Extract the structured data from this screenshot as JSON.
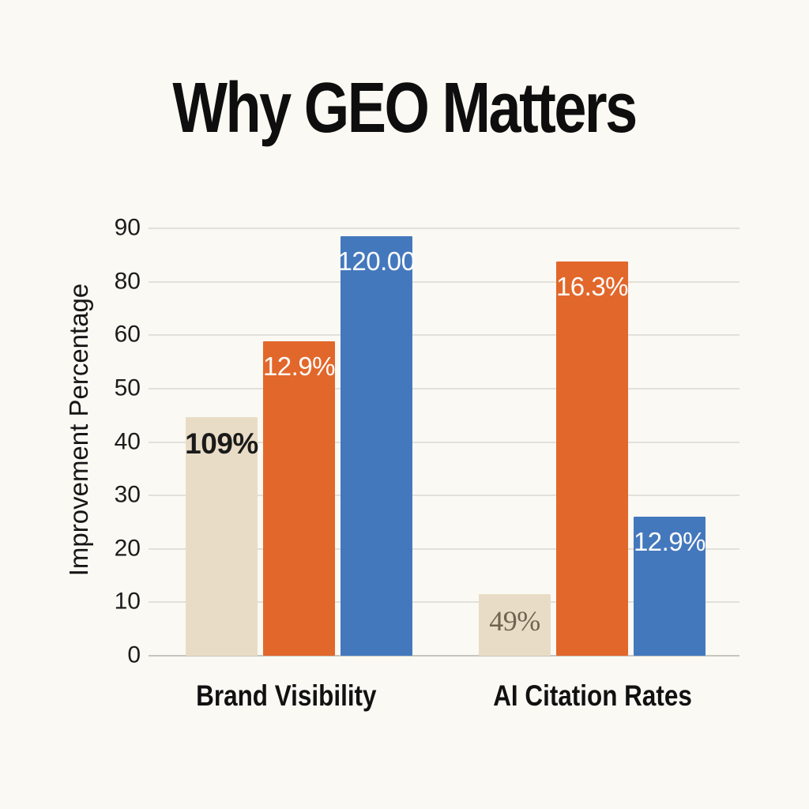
{
  "page": {
    "background_color": "#faf9f3"
  },
  "chart_data": {
    "type": "bar",
    "title": "Why GEO Matters",
    "xlabel": "",
    "ylabel": "Improvement Percentage",
    "ylim": [
      0,
      90
    ],
    "grid": true,
    "legend": false,
    "y_axis": {
      "title": "Improvement Percentage",
      "ticks": [
        {
          "value": 0,
          "label": "0"
        },
        {
          "value": 10,
          "label": "10"
        },
        {
          "value": 20,
          "label": "20"
        },
        {
          "value": 30,
          "label": "30"
        },
        {
          "value": 40,
          "label": "40"
        },
        {
          "value": 50,
          "label": "50"
        },
        {
          "value": 60,
          "label": "60"
        },
        {
          "value": 80,
          "label": "80"
        },
        {
          "value": 90,
          "label": "90"
        }
      ]
    },
    "categories": [
      "Brand Visibility",
      "AI Citation Rates"
    ],
    "series_colors": {
      "beige": "#e9dcc6",
      "orange": "#e2672b",
      "blue": "#4478bd"
    },
    "groups": [
      {
        "category": "Brand Visibility",
        "bars": [
          {
            "series": "beige",
            "value": 44.7,
            "label": "109%",
            "label_style": "dark"
          },
          {
            "series": "orange",
            "value": 58.8,
            "label": "12.9%",
            "label_style": "light"
          },
          {
            "series": "blue",
            "value": 88.5,
            "label": "120.00",
            "label_style": "light"
          }
        ]
      },
      {
        "category": "AI Citation Rates",
        "bars": [
          {
            "series": "beige",
            "value": 11.5,
            "label": "49%",
            "label_style": "faint"
          },
          {
            "series": "orange",
            "value": 83.8,
            "label": "16.3%",
            "label_style": "light"
          },
          {
            "series": "blue",
            "value": 26.0,
            "label": "12.9%",
            "label_style": "light"
          }
        ]
      }
    ]
  }
}
